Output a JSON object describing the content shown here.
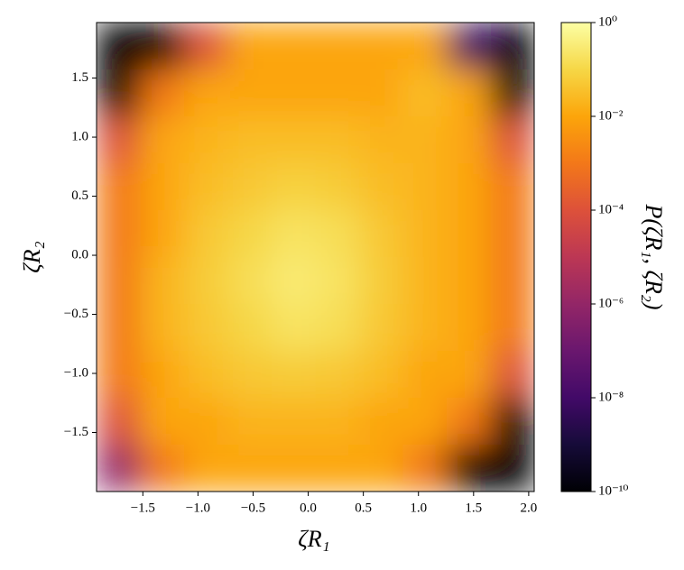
{
  "chart_data": {
    "type": "heatmap",
    "xlabel": "ζR₁",
    "ylabel": "ζR₂",
    "colorbar_label": "P(ζR₁, ζR₂)",
    "colormap": "inferno",
    "color_scale": "log",
    "xlim": [
      -1.92,
      2.05
    ],
    "ylim": [
      -2.0,
      1.97
    ],
    "xticks": [
      {
        "value": -1.5,
        "label": "−1.5"
      },
      {
        "value": -1.0,
        "label": "−1.0"
      },
      {
        "value": -0.5,
        "label": "−0.5"
      },
      {
        "value": 0.0,
        "label": "0.0"
      },
      0.5,
      {
        "value": 1.0,
        "label": "1.0"
      },
      1.5,
      {
        "value": 2.0,
        "label": "2.0"
      }
    ],
    "yticks": [
      {
        "value": -1.5,
        "label": "−1.5"
      },
      {
        "value": -1.0,
        "label": "−1.0"
      },
      {
        "value": -0.5,
        "label": "−0.5"
      },
      {
        "value": 0.0,
        "label": "0.0"
      },
      0.5,
      {
        "value": 1.0,
        "label": "1.0"
      },
      1.5
    ],
    "clim": [
      1e-10,
      1
    ],
    "cticks": [
      {
        "value": 1e-10,
        "label": "10⁻¹⁰"
      },
      {
        "value": 1e-08,
        "label": "10⁻⁸"
      },
      {
        "value": 1e-06,
        "label": "10⁻⁶"
      },
      {
        "value": 0.0001,
        "label": "10⁻⁴"
      },
      {
        "value": 0.01,
        "label": "10⁻²"
      },
      {
        "value": 1,
        "label": "10⁰"
      }
    ],
    "xbins": [
      -1.92,
      -1.523,
      -1.126,
      -0.729,
      -0.332,
      0.065,
      0.462,
      0.859,
      1.256,
      1.653,
      2.05
    ],
    "ybins": [
      1.97,
      1.573,
      1.176,
      0.779,
      0.382,
      -0.015,
      -0.412,
      -0.809,
      -1.206,
      -1.603,
      -2.0
    ],
    "z": [
      [
        1e-10,
        1e-10,
        0.0001,
        0.01,
        0.01,
        0.01,
        0.01,
        0.01,
        1e-08,
        1e-10
      ],
      [
        1e-10,
        0.001,
        0.01,
        0.01,
        0.01,
        0.01,
        0.01,
        0.03,
        0.01,
        1e-10
      ],
      [
        0.0001,
        0.01,
        0.02,
        0.03,
        0.03,
        0.03,
        0.02,
        0.02,
        0.01,
        0.0001
      ],
      [
        0.001,
        0.01,
        0.03,
        0.05,
        0.08,
        0.06,
        0.03,
        0.02,
        0.01,
        0.001
      ],
      [
        0.001,
        0.01,
        0.05,
        0.1,
        0.2,
        0.15,
        0.05,
        0.02,
        0.01,
        0.001
      ],
      [
        0.001,
        0.02,
        0.06,
        0.15,
        0.3,
        0.2,
        0.06,
        0.02,
        0.01,
        0.001
      ],
      [
        0.001,
        0.02,
        0.05,
        0.1,
        0.2,
        0.15,
        0.05,
        0.02,
        0.01,
        0.001
      ],
      [
        0.001,
        0.01,
        0.03,
        0.05,
        0.06,
        0.05,
        0.03,
        0.01,
        0.01,
        0.0001
      ],
      [
        0.0001,
        0.01,
        0.01,
        0.02,
        0.02,
        0.02,
        0.01,
        0.01,
        0.001,
        1e-10
      ],
      [
        1e-06,
        0.001,
        0.01,
        0.01,
        0.01,
        0.01,
        0.01,
        0.001,
        1e-10,
        1e-10
      ]
    ]
  }
}
